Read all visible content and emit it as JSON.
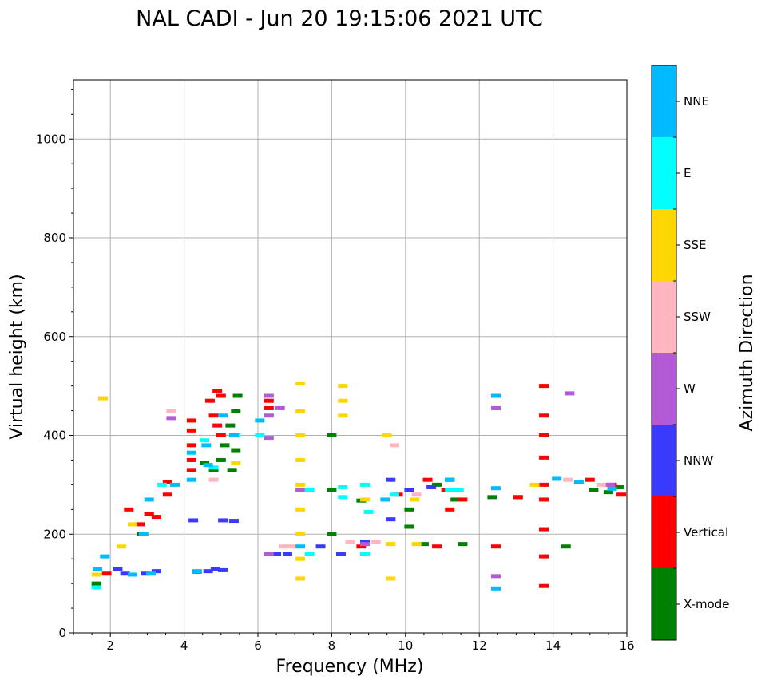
{
  "chart_data": {
    "type": "scatter",
    "title": "NAL CADI - Jun 20 19:15:06 2021 UTC",
    "xlabel": "Frequency (MHz)",
    "ylabel": "Virtual height (km)",
    "xlim": [
      1,
      16
    ],
    "ylim": [
      0,
      1120
    ],
    "xticks": [
      2,
      4,
      6,
      8,
      10,
      12,
      14,
      16
    ],
    "yticks": [
      0,
      200,
      400,
      600,
      800,
      1000
    ],
    "grid": true,
    "colorbar": {
      "title": "Azimuth Direction",
      "categories": [
        {
          "name": "X-mode",
          "color": "#008000"
        },
        {
          "name": "Vertical",
          "color": "#ff0000"
        },
        {
          "name": "NNW",
          "color": "#3a3aff"
        },
        {
          "name": "W",
          "color": "#b45ad7"
        },
        {
          "name": "SSW",
          "color": "#ffb6c1"
        },
        {
          "name": "SSE",
          "color": "#ffd700"
        },
        {
          "name": "E",
          "color": "#00ffff"
        },
        {
          "name": "NNE",
          "color": "#00bbff"
        }
      ]
    },
    "series": [
      {
        "name": "X-mode",
        "points": [
          [
            1.62,
            100
          ],
          [
            2.85,
            200
          ],
          [
            3.05,
            240
          ],
          [
            4.55,
            345
          ],
          [
            4.8,
            330
          ],
          [
            5.0,
            350
          ],
          [
            5.1,
            380
          ],
          [
            5.25,
            420
          ],
          [
            5.4,
            450
          ],
          [
            5.45,
            480
          ],
          [
            5.4,
            370
          ],
          [
            5.3,
            330
          ],
          [
            8.0,
            290
          ],
          [
            8.0,
            200
          ],
          [
            8.0,
            400
          ],
          [
            8.8,
            268
          ],
          [
            10.1,
            215
          ],
          [
            10.1,
            250
          ],
          [
            10.5,
            180
          ],
          [
            10.85,
            300
          ],
          [
            11.2,
            310
          ],
          [
            11.55,
            180
          ],
          [
            11.35,
            270
          ],
          [
            12.35,
            275
          ],
          [
            13.05,
            275
          ],
          [
            14.35,
            175
          ],
          [
            15.1,
            290
          ],
          [
            15.5,
            285
          ],
          [
            15.8,
            295
          ]
        ]
      },
      {
        "name": "Vertical",
        "points": [
          [
            1.9,
            120
          ],
          [
            2.5,
            250
          ],
          [
            2.8,
            220
          ],
          [
            3.05,
            240
          ],
          [
            3.25,
            235
          ],
          [
            3.55,
            305
          ],
          [
            3.55,
            280
          ],
          [
            4.2,
            430
          ],
          [
            4.2,
            410
          ],
          [
            4.2,
            380
          ],
          [
            4.2,
            350
          ],
          [
            4.2,
            330
          ],
          [
            4.7,
            470
          ],
          [
            4.8,
            440
          ],
          [
            4.9,
            490
          ],
          [
            4.9,
            420
          ],
          [
            5.0,
            480
          ],
          [
            5.0,
            400
          ],
          [
            6.3,
            470
          ],
          [
            6.3,
            455
          ],
          [
            8.8,
            175
          ],
          [
            9.8,
            280
          ],
          [
            10.6,
            310
          ],
          [
            10.85,
            175
          ],
          [
            11.1,
            290
          ],
          [
            11.2,
            250
          ],
          [
            11.55,
            270
          ],
          [
            12.45,
            175
          ],
          [
            13.05,
            275
          ],
          [
            13.75,
            500
          ],
          [
            13.75,
            440
          ],
          [
            13.75,
            400
          ],
          [
            13.75,
            355
          ],
          [
            13.75,
            300
          ],
          [
            13.75,
            270
          ],
          [
            13.75,
            210
          ],
          [
            13.75,
            155
          ],
          [
            13.75,
            95
          ],
          [
            15.0,
            310
          ],
          [
            15.6,
            300
          ],
          [
            15.85,
            280
          ]
        ]
      },
      {
        "name": "NNW",
        "points": [
          [
            2.2,
            130
          ],
          [
            2.4,
            120
          ],
          [
            2.95,
            120
          ],
          [
            3.25,
            125
          ],
          [
            4.25,
            228
          ],
          [
            4.35,
            124
          ],
          [
            4.65,
            125
          ],
          [
            4.85,
            130
          ],
          [
            5.05,
            127
          ],
          [
            5.35,
            227
          ],
          [
            5.05,
            228
          ],
          [
            6.5,
            160
          ],
          [
            6.8,
            160
          ],
          [
            7.7,
            175
          ],
          [
            8.25,
            160
          ],
          [
            8.9,
            185
          ],
          [
            9.6,
            230
          ],
          [
            9.6,
            310
          ],
          [
            10.1,
            290
          ],
          [
            10.7,
            295
          ]
        ]
      },
      {
        "name": "W",
        "points": [
          [
            3.65,
            435
          ],
          [
            6.3,
            480
          ],
          [
            6.3,
            440
          ],
          [
            6.3,
            395
          ],
          [
            6.6,
            455
          ],
          [
            6.3,
            160
          ],
          [
            7.15,
            290
          ],
          [
            8.9,
            180
          ],
          [
            12.45,
            455
          ],
          [
            12.45,
            115
          ],
          [
            14.45,
            485
          ],
          [
            15.55,
            300
          ]
        ]
      },
      {
        "name": "SSW",
        "points": [
          [
            3.65,
            450
          ],
          [
            4.8,
            310
          ],
          [
            6.7,
            175
          ],
          [
            6.9,
            175
          ],
          [
            8.5,
            185
          ],
          [
            9.2,
            185
          ],
          [
            9.7,
            380
          ],
          [
            10.3,
            280
          ],
          [
            14.4,
            310
          ],
          [
            15.3,
            300
          ]
        ]
      },
      {
        "name": "SSE",
        "points": [
          [
            1.62,
            118
          ],
          [
            1.8,
            475
          ],
          [
            2.3,
            175
          ],
          [
            2.6,
            220
          ],
          [
            5.4,
            345
          ],
          [
            7.15,
            505
          ],
          [
            7.15,
            450
          ],
          [
            7.15,
            400
          ],
          [
            7.15,
            350
          ],
          [
            7.15,
            300
          ],
          [
            7.15,
            250
          ],
          [
            7.15,
            200
          ],
          [
            7.15,
            150
          ],
          [
            7.15,
            110
          ],
          [
            8.3,
            500
          ],
          [
            8.3,
            470
          ],
          [
            8.3,
            440
          ],
          [
            8.9,
            270
          ],
          [
            9.5,
            400
          ],
          [
            9.6,
            110
          ],
          [
            9.6,
            180
          ],
          [
            10.3,
            180
          ],
          [
            10.25,
            270
          ],
          [
            13.5,
            300
          ]
        ]
      },
      {
        "name": "E",
        "points": [
          [
            1.62,
            92
          ],
          [
            3.4,
            300
          ],
          [
            4.55,
            390
          ],
          [
            4.8,
            335
          ],
          [
            5.4,
            400
          ],
          [
            6.05,
            400
          ],
          [
            7.4,
            290
          ],
          [
            7.4,
            160
          ],
          [
            8.3,
            295
          ],
          [
            8.3,
            275
          ],
          [
            8.9,
            300
          ],
          [
            8.9,
            160
          ],
          [
            9.0,
            245
          ],
          [
            9.7,
            280
          ],
          [
            11.2,
            290
          ],
          [
            11.45,
            290
          ]
        ]
      },
      {
        "name": "NNE",
        "points": [
          [
            1.65,
            130
          ],
          [
            1.85,
            155
          ],
          [
            2.6,
            118
          ],
          [
            3.05,
            270
          ],
          [
            2.9,
            200
          ],
          [
            3.1,
            120
          ],
          [
            3.75,
            300
          ],
          [
            4.2,
            310
          ],
          [
            4.2,
            365
          ],
          [
            4.35,
            125
          ],
          [
            4.6,
            380
          ],
          [
            4.65,
            340
          ],
          [
            5.05,
            440
          ],
          [
            5.35,
            400
          ],
          [
            6.05,
            430
          ],
          [
            7.15,
            175
          ],
          [
            9.45,
            270
          ],
          [
            11.2,
            310
          ],
          [
            12.45,
            480
          ],
          [
            12.45,
            293
          ],
          [
            12.45,
            90
          ],
          [
            14.1,
            312
          ],
          [
            14.7,
            305
          ],
          [
            15.6,
            292
          ]
        ]
      }
    ]
  }
}
